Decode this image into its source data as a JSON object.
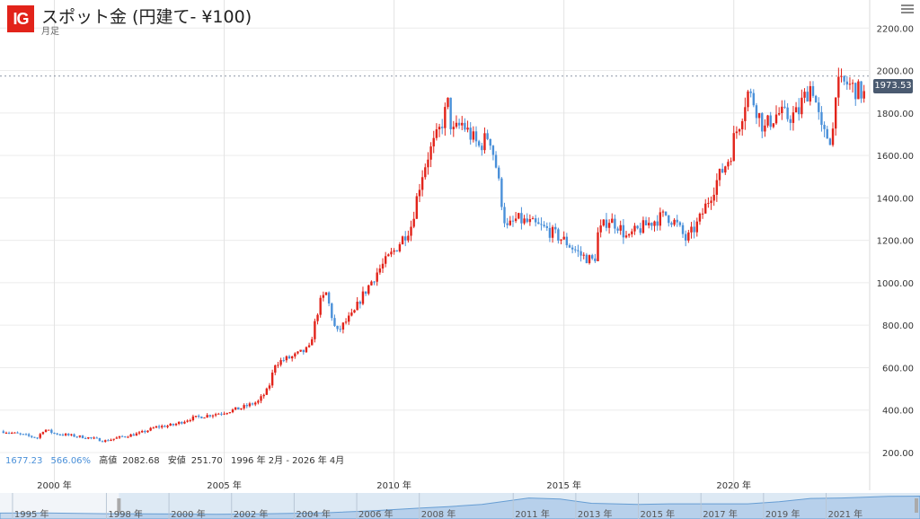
{
  "header": {
    "logo": "IG",
    "title": "スポット金 (円建て- ¥100)",
    "period": "月足",
    "settings_icon": "hamburger-menu-icon"
  },
  "stats": {
    "change": "1677.23",
    "change_pct": "566.06%",
    "high_label": "高値",
    "high_value": "2082.68",
    "low_label": "安値",
    "low_value": "251.70",
    "range": "1996 年 2月 - 2026 年 4月"
  },
  "price_box": "1973.53",
  "colors": {
    "up": "#e2231a",
    "down": "#4a90d9",
    "brand": "#e2231a",
    "navigator_fill": "#c7d9ee"
  },
  "chart_data": {
    "type": "candlestick",
    "title": "スポット金 (円建て- ¥100)",
    "interval": "月足",
    "x_range": [
      1998.4,
      2024.0
    ],
    "ylim": [
      90,
      2290
    ],
    "y_ticks": [
      200,
      400,
      600,
      800,
      1000,
      1200,
      1400,
      1600,
      1800,
      2000,
      2200
    ],
    "y_tick_labels": [
      "200.00",
      "400.00",
      "600.00",
      "800.00",
      "1000.00",
      "1200.00",
      "1400.00",
      "1600.00",
      "1800.00",
      "2000.00",
      "2200.00"
    ],
    "x_ticks": [
      2000,
      2005,
      2010,
      2015,
      2020
    ],
    "x_tick_labels": [
      "2000 年",
      "2005 年",
      "2010 年",
      "2015 年",
      "2020 年"
    ],
    "last_price": 1973.53,
    "grid": true,
    "close_series": {
      "x": [
        1998.5,
        1999.0,
        1999.5,
        1999.7,
        2000.0,
        2000.5,
        2001.0,
        2001.5,
        2002.0,
        2002.5,
        2003.0,
        2003.5,
        2004.0,
        2004.5,
        2005.0,
        2005.5,
        2006.0,
        2006.3,
        2006.5,
        2006.8,
        2007.0,
        2007.5,
        2007.8,
        2008.0,
        2008.3,
        2008.6,
        2008.8,
        2009.0,
        2009.5,
        2010.0,
        2010.5,
        2010.8,
        2011.0,
        2011.3,
        2011.6,
        2011.7,
        2012.0,
        2012.5,
        2012.8,
        2013.0,
        2013.3,
        2013.6,
        2014.0,
        2014.5,
        2015.0,
        2015.5,
        2015.9,
        2016.0,
        2016.3,
        2016.6,
        2016.9,
        2017.0,
        2017.5,
        2018.0,
        2018.3,
        2018.6,
        2018.9,
        2019.0,
        2019.5,
        2019.9,
        2020.0,
        2020.2,
        2020.4,
        2020.6,
        2020.9,
        2021.0,
        2021.3,
        2021.6,
        2021.9,
        2022.0,
        2022.3,
        2022.6,
        2022.9,
        2023.0,
        2023.3,
        2023.6,
        2023.9
      ],
      "y": [
        300,
        285,
        270,
        310,
        290,
        280,
        270,
        255,
        275,
        290,
        320,
        330,
        360,
        375,
        390,
        410,
        440,
        500,
        620,
        640,
        650,
        690,
        900,
        950,
        760,
        820,
        850,
        920,
        1050,
        1150,
        1270,
        1500,
        1600,
        1700,
        1850,
        1700,
        1750,
        1640,
        1700,
        1550,
        1250,
        1300,
        1280,
        1250,
        1200,
        1130,
        1100,
        1230,
        1300,
        1270,
        1200,
        1230,
        1280,
        1320,
        1280,
        1200,
        1270,
        1300,
        1480,
        1600,
        1680,
        1770,
        1900,
        1850,
        1720,
        1750,
        1800,
        1780,
        1800,
        1850,
        1940,
        1700,
        1680,
        1920,
        1940,
        1910,
        1880
      ]
    },
    "navigator": {
      "type": "area",
      "x_range": [
        1994.6,
        2024.0
      ],
      "x_ticks": [
        1995,
        1998,
        2000,
        2002,
        2004,
        2006,
        2008,
        2011,
        2013,
        2015,
        2017,
        2019,
        2021
      ],
      "x_tick_labels": [
        "1995 年",
        "1998 年",
        "2000 年",
        "2002 年",
        "2004 年",
        "2006 年",
        "2008 年",
        "2011 年",
        "2013 年",
        "2015 年",
        "2017 年",
        "2019 年",
        "2021 年"
      ]
    }
  }
}
